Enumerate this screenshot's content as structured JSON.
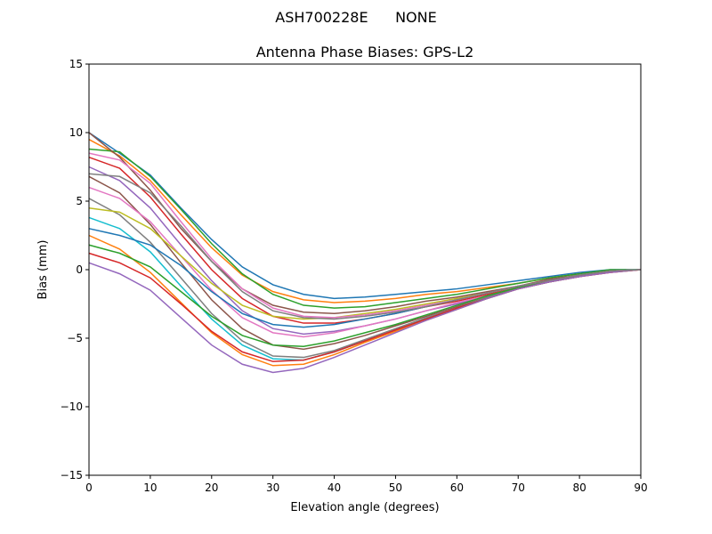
{
  "suptitle": "ASH700228E      NONE",
  "chart_data": {
    "type": "line",
    "title": "Antenna Phase Biases: GPS-L2",
    "xlabel": "Elevation angle (degrees)",
    "ylabel": "Bias (mm)",
    "xlim": [
      0,
      90
    ],
    "ylim": [
      -15,
      15
    ],
    "xticks": [
      "0",
      "10",
      "20",
      "30",
      "40",
      "50",
      "60",
      "70",
      "80",
      "90"
    ],
    "yticks": [
      "−15",
      "−10",
      "−5",
      "0",
      "5",
      "10",
      "15"
    ],
    "grid": false,
    "legend": "none",
    "colors": [
      "#1f77b4",
      "#ff7f0e",
      "#2ca02c",
      "#d62728",
      "#9467bd",
      "#8c564b",
      "#e377c2",
      "#7f7f7f",
      "#bcbd22",
      "#17becf"
    ],
    "x": [
      0,
      5,
      10,
      15,
      20,
      25,
      30,
      35,
      40,
      45,
      50,
      55,
      60,
      65,
      70,
      75,
      80,
      85,
      90
    ],
    "series": [
      {
        "values": [
          10.0,
          8.5,
          6.9,
          4.5,
          2.2,
          0.2,
          -1.1,
          -1.8,
          -2.1,
          -2.0,
          -1.8,
          -1.6,
          -1.4,
          -1.1,
          -0.8,
          -0.5,
          -0.2,
          0.0,
          0.0
        ]
      },
      {
        "values": [
          9.5,
          8.3,
          6.5,
          4.0,
          1.6,
          -0.4,
          -1.6,
          -2.2,
          -2.4,
          -2.3,
          -2.1,
          -1.8,
          -1.6,
          -1.3,
          -1.0,
          -0.6,
          -0.3,
          -0.1,
          0.0
        ]
      },
      {
        "values": [
          8.8,
          8.6,
          6.8,
          4.4,
          1.9,
          -0.3,
          -1.8,
          -2.6,
          -2.8,
          -2.7,
          -2.4,
          -2.1,
          -1.8,
          -1.4,
          -1.0,
          -0.6,
          -0.3,
          0.0,
          0.0
        ]
      },
      {
        "values": [
          8.2,
          7.4,
          5.3,
          2.6,
          0.0,
          -2.1,
          -3.4,
          -3.9,
          -3.9,
          -3.6,
          -3.2,
          -2.7,
          -2.3,
          -1.8,
          -1.3,
          -0.8,
          -0.4,
          -0.1,
          0.0
        ]
      },
      {
        "values": [
          7.5,
          6.5,
          4.5,
          1.8,
          -0.8,
          -3.0,
          -4.3,
          -4.7,
          -4.5,
          -4.1,
          -3.6,
          -3.0,
          -2.5,
          -1.9,
          -1.4,
          -0.9,
          -0.5,
          -0.1,
          0.0
        ]
      },
      {
        "values": [
          6.8,
          5.6,
          3.3,
          0.5,
          -2.2,
          -4.3,
          -5.5,
          -5.8,
          -5.4,
          -4.8,
          -4.1,
          -3.4,
          -2.7,
          -2.0,
          -1.4,
          -0.9,
          -0.5,
          -0.1,
          0.0
        ]
      },
      {
        "values": [
          6.0,
          5.2,
          3.5,
          1.0,
          -1.5,
          -3.5,
          -4.6,
          -4.9,
          -4.6,
          -4.1,
          -3.6,
          -3.0,
          -2.4,
          -1.9,
          -1.3,
          -0.8,
          -0.4,
          -0.1,
          0.0
        ]
      },
      {
        "values": [
          5.2,
          4.0,
          2.0,
          -0.6,
          -3.2,
          -5.2,
          -6.3,
          -6.4,
          -5.9,
          -5.1,
          -4.3,
          -3.5,
          -2.8,
          -2.0,
          -1.4,
          -0.9,
          -0.5,
          -0.1,
          0.0
        ]
      },
      {
        "values": [
          4.5,
          4.2,
          3.0,
          1.0,
          -1.0,
          -2.6,
          -3.4,
          -3.6,
          -3.5,
          -3.2,
          -2.9,
          -2.5,
          -2.1,
          -1.7,
          -1.2,
          -0.8,
          -0.4,
          -0.1,
          0.0
        ]
      },
      {
        "values": [
          3.8,
          3.0,
          1.3,
          -1.2,
          -3.6,
          -5.5,
          -6.5,
          -6.6,
          -6.0,
          -5.2,
          -4.4,
          -3.6,
          -2.8,
          -2.1,
          -1.4,
          -0.9,
          -0.5,
          -0.1,
          0.0
        ]
      },
      {
        "values": [
          3.0,
          2.5,
          1.8,
          0.3,
          -1.6,
          -3.2,
          -4.0,
          -4.2,
          -4.0,
          -3.6,
          -3.2,
          -2.7,
          -2.2,
          -1.7,
          -1.2,
          -0.8,
          -0.4,
          -0.1,
          0.0
        ]
      },
      {
        "values": [
          2.5,
          1.5,
          -0.2,
          -2.4,
          -4.6,
          -6.2,
          -7.0,
          -6.9,
          -6.2,
          -5.3,
          -4.5,
          -3.7,
          -2.9,
          -2.1,
          -1.4,
          -0.9,
          -0.5,
          -0.2,
          0.0
        ]
      },
      {
        "values": [
          1.8,
          1.2,
          0.2,
          -1.6,
          -3.4,
          -4.8,
          -5.5,
          -5.6,
          -5.2,
          -4.6,
          -4.0,
          -3.3,
          -2.6,
          -1.9,
          -1.3,
          -0.8,
          -0.4,
          -0.1,
          0.0
        ]
      },
      {
        "values": [
          1.2,
          0.5,
          -0.6,
          -2.5,
          -4.5,
          -6.0,
          -6.7,
          -6.6,
          -6.0,
          -5.2,
          -4.4,
          -3.6,
          -2.8,
          -2.1,
          -1.4,
          -0.9,
          -0.5,
          -0.2,
          0.0
        ]
      },
      {
        "values": [
          0.5,
          -0.3,
          -1.5,
          -3.5,
          -5.5,
          -6.9,
          -7.5,
          -7.2,
          -6.4,
          -5.5,
          -4.6,
          -3.7,
          -2.9,
          -2.1,
          -1.4,
          -0.9,
          -0.5,
          -0.2,
          0.0
        ]
      },
      {
        "values": [
          10.0,
          8.2,
          5.8,
          3.0,
          0.6,
          -1.4,
          -2.6,
          -3.1,
          -3.2,
          -3.0,
          -2.7,
          -2.3,
          -2.0,
          -1.6,
          -1.2,
          -0.7,
          -0.4,
          -0.1,
          0.0
        ]
      },
      {
        "values": [
          8.5,
          8.0,
          6.3,
          3.5,
          0.8,
          -1.4,
          -2.8,
          -3.4,
          -3.5,
          -3.3,
          -3.0,
          -2.6,
          -2.2,
          -1.7,
          -1.2,
          -0.8,
          -0.4,
          -0.1,
          0.0
        ]
      },
      {
        "values": [
          7.0,
          6.8,
          5.6,
          3.2,
          0.6,
          -1.6,
          -3.0,
          -3.5,
          -3.6,
          -3.4,
          -3.1,
          -2.7,
          -2.2,
          -1.7,
          -1.2,
          -0.8,
          -0.4,
          -0.1,
          0.0
        ]
      }
    ]
  }
}
